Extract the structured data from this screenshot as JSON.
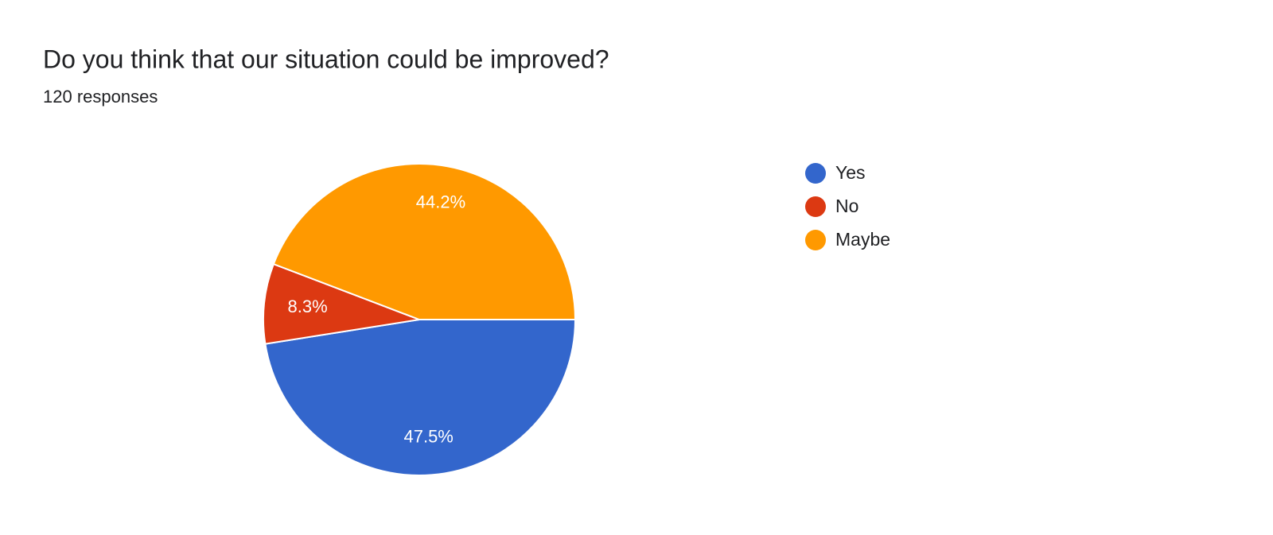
{
  "chart_data": {
    "type": "pie",
    "title": "Do you think that our situation could be improved?",
    "subtitle": "120 responses",
    "categories": [
      "Yes",
      "No",
      "Maybe"
    ],
    "values": [
      47.5,
      8.3,
      44.2
    ],
    "value_labels": [
      "47.5%",
      "8.3%",
      "44.2%"
    ],
    "colors": [
      "#3366cc",
      "#dc3912",
      "#ff9900"
    ],
    "legend": "right"
  }
}
